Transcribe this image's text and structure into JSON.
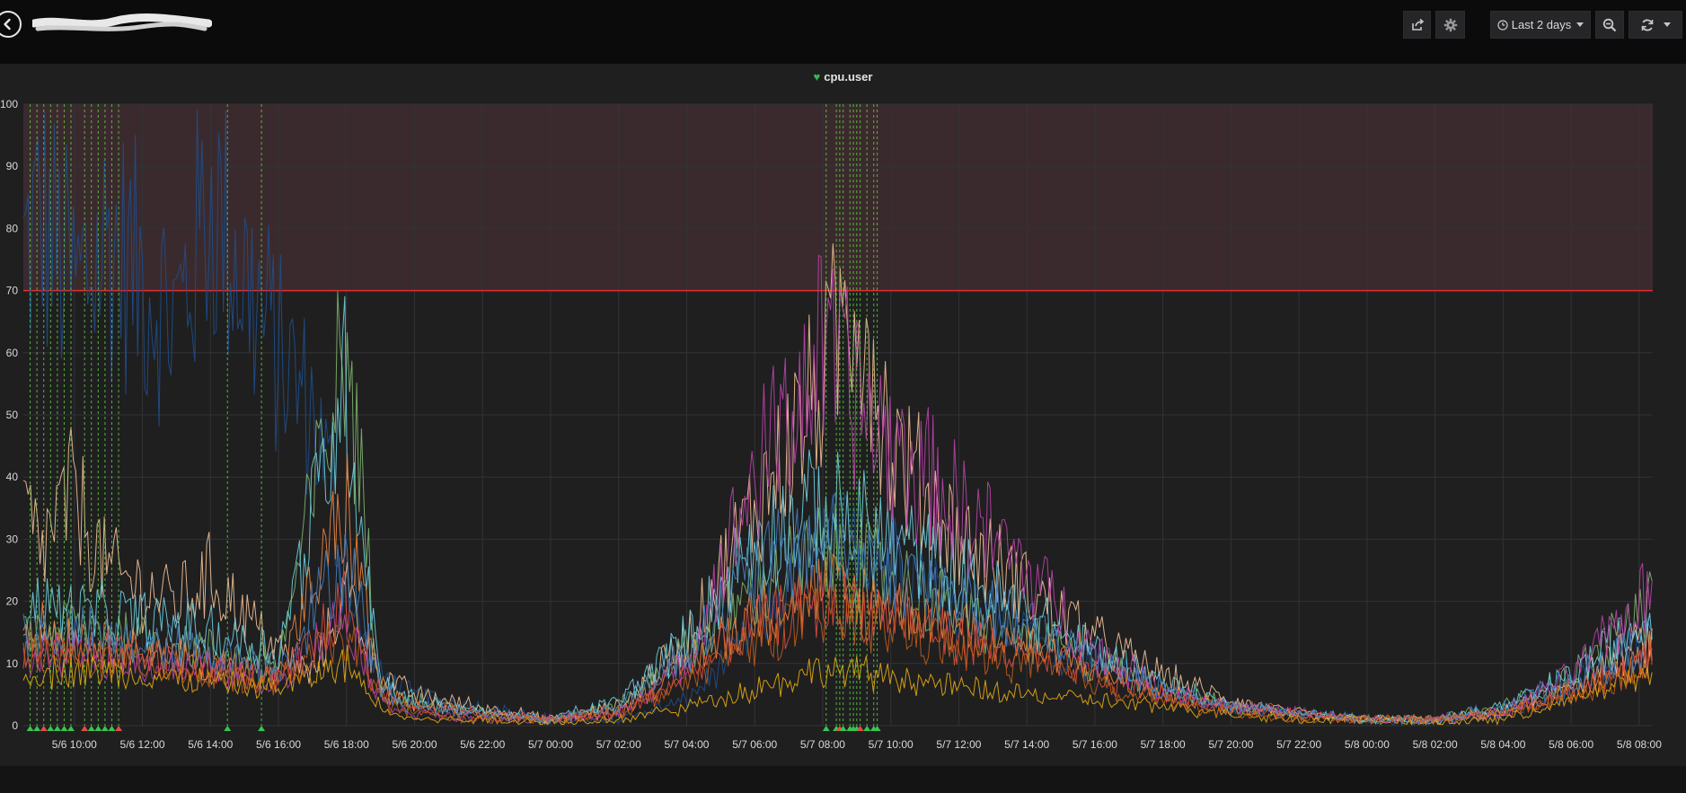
{
  "toolbar": {
    "time_range_label": "Last 2 days"
  },
  "panel": {
    "title": "cpu.user"
  },
  "chart_data": {
    "type": "line",
    "title": "cpu.user",
    "ylim": [
      0,
      100
    ],
    "y_ticks": [
      0,
      10,
      20,
      30,
      40,
      50,
      60,
      70,
      80,
      90,
      100
    ],
    "x_tick_labels": [
      "5/6 10:00",
      "5/6 12:00",
      "5/6 14:00",
      "5/6 16:00",
      "5/6 18:00",
      "5/6 20:00",
      "5/6 22:00",
      "5/7 00:00",
      "5/7 02:00",
      "5/7 04:00",
      "5/7 06:00",
      "5/7 08:00",
      "5/7 10:00",
      "5/7 12:00",
      "5/7 14:00",
      "5/7 16:00",
      "5/7 18:00",
      "5/7 20:00",
      "5/7 22:00",
      "5/8 00:00",
      "5/8 02:00",
      "5/8 04:00",
      "5/8 06:00",
      "5/8 08:00"
    ],
    "x_start_hours": -1.5,
    "x_end_hours": 46.4,
    "threshold": {
      "value": 70,
      "op": "gt",
      "line_color": "#e02f2f",
      "fill_color": "#3b2a2d"
    },
    "grid": true,
    "annotations_hours": [
      -1.3,
      -1.1,
      -0.9,
      -0.7,
      -0.5,
      -0.3,
      -0.1,
      0.3,
      0.5,
      0.7,
      0.9,
      1.1,
      1.3,
      4.5,
      5.5,
      22.1,
      22.4,
      22.5,
      22.6,
      22.8,
      22.9,
      23.0,
      23.1,
      23.3,
      23.5,
      23.6
    ],
    "series": [
      {
        "color": "#1f4e8c",
        "values": [
          [
            -1.5,
            75
          ],
          [
            -1,
            82
          ],
          [
            0,
            70
          ],
          [
            1,
            78
          ],
          [
            2,
            72
          ],
          [
            3,
            65
          ],
          [
            4,
            85
          ],
          [
            5,
            72
          ],
          [
            6,
            60
          ],
          [
            7,
            50
          ],
          [
            7.5,
            40
          ],
          [
            8,
            20
          ],
          [
            9,
            8
          ],
          [
            10,
            5
          ],
          [
            12,
            3
          ],
          [
            14,
            1
          ],
          [
            16,
            1
          ],
          [
            18,
            4
          ],
          [
            20,
            15
          ],
          [
            22,
            30
          ],
          [
            24,
            28
          ],
          [
            26,
            20
          ],
          [
            28,
            14
          ],
          [
            30,
            10
          ],
          [
            32,
            6
          ],
          [
            34,
            3
          ],
          [
            36,
            2
          ],
          [
            38,
            1
          ],
          [
            40,
            1
          ],
          [
            42,
            2
          ],
          [
            44,
            6
          ],
          [
            46.4,
            15
          ]
        ]
      },
      {
        "color": "#f2c196",
        "values": [
          [
            -1.5,
            35
          ],
          [
            -1,
            28
          ],
          [
            0,
            38
          ],
          [
            0.5,
            30
          ],
          [
            1,
            25
          ],
          [
            2,
            22
          ],
          [
            3,
            20
          ],
          [
            4,
            24
          ],
          [
            5,
            18
          ],
          [
            6,
            12
          ],
          [
            7,
            8
          ],
          [
            8,
            22
          ],
          [
            9,
            8
          ],
          [
            10,
            5
          ],
          [
            12,
            3
          ],
          [
            14,
            1
          ],
          [
            16,
            3
          ],
          [
            18,
            14
          ],
          [
            20,
            35
          ],
          [
            22,
            55
          ],
          [
            23,
            72
          ],
          [
            24,
            45
          ],
          [
            26,
            30
          ],
          [
            28,
            22
          ],
          [
            30,
            14
          ],
          [
            32,
            8
          ],
          [
            34,
            4
          ],
          [
            36,
            2
          ],
          [
            38,
            1
          ],
          [
            40,
            1
          ],
          [
            42,
            2
          ],
          [
            44,
            7
          ],
          [
            46.4,
            14
          ]
        ]
      },
      {
        "color": "#7eb26d",
        "values": [
          [
            -1.5,
            14
          ],
          [
            0,
            16
          ],
          [
            2,
            14
          ],
          [
            4,
            12
          ],
          [
            6,
            10
          ],
          [
            8,
            62
          ],
          [
            9,
            6
          ],
          [
            10,
            4
          ],
          [
            12,
            2
          ],
          [
            14,
            1
          ],
          [
            16,
            3
          ],
          [
            18,
            12
          ],
          [
            20,
            22
          ],
          [
            22,
            28
          ],
          [
            24,
            24
          ],
          [
            26,
            18
          ],
          [
            28,
            14
          ],
          [
            30,
            10
          ],
          [
            32,
            6
          ],
          [
            34,
            3
          ],
          [
            36,
            2
          ],
          [
            38,
            1
          ],
          [
            40,
            1
          ],
          [
            42,
            3
          ],
          [
            44,
            8
          ],
          [
            46.4,
            20
          ]
        ]
      },
      {
        "color": "#6ed0e0",
        "values": [
          [
            -1.5,
            20
          ],
          [
            0,
            18
          ],
          [
            2,
            17
          ],
          [
            4,
            15
          ],
          [
            6,
            12
          ],
          [
            8,
            55
          ],
          [
            9,
            7
          ],
          [
            10,
            4
          ],
          [
            12,
            2
          ],
          [
            14,
            1
          ],
          [
            16,
            4
          ],
          [
            18,
            14
          ],
          [
            20,
            30
          ],
          [
            22,
            35
          ],
          [
            24,
            30
          ],
          [
            26,
            24
          ],
          [
            28,
            18
          ],
          [
            30,
            12
          ],
          [
            32,
            7
          ],
          [
            34,
            3
          ],
          [
            36,
            2
          ],
          [
            38,
            1
          ],
          [
            40,
            1
          ],
          [
            42,
            3
          ],
          [
            44,
            8
          ],
          [
            46.4,
            18
          ]
        ]
      },
      {
        "color": "#ef843c",
        "values": [
          [
            -1.5,
            17
          ],
          [
            0,
            14
          ],
          [
            2,
            12
          ],
          [
            4,
            10
          ],
          [
            6,
            8
          ],
          [
            8,
            35
          ],
          [
            9,
            6
          ],
          [
            10,
            3
          ],
          [
            12,
            2
          ],
          [
            14,
            1
          ],
          [
            16,
            2
          ],
          [
            18,
            10
          ],
          [
            20,
            18
          ],
          [
            22,
            22
          ],
          [
            24,
            20
          ],
          [
            26,
            16
          ],
          [
            28,
            13
          ],
          [
            30,
            9
          ],
          [
            32,
            5
          ],
          [
            34,
            3
          ],
          [
            36,
            2
          ],
          [
            38,
            1
          ],
          [
            40,
            1
          ],
          [
            42,
            2
          ],
          [
            44,
            6
          ],
          [
            46.4,
            12
          ]
        ]
      },
      {
        "color": "#e24d42",
        "values": [
          [
            -1.5,
            12
          ],
          [
            0,
            13
          ],
          [
            2,
            11
          ],
          [
            4,
            9
          ],
          [
            6,
            7
          ],
          [
            8,
            20
          ],
          [
            9,
            5
          ],
          [
            10,
            3
          ],
          [
            12,
            2
          ],
          [
            14,
            1
          ],
          [
            16,
            2
          ],
          [
            18,
            8
          ],
          [
            20,
            16
          ],
          [
            22,
            20
          ],
          [
            24,
            18
          ],
          [
            26,
            14
          ],
          [
            28,
            11
          ],
          [
            30,
            8
          ],
          [
            32,
            5
          ],
          [
            34,
            3
          ],
          [
            36,
            2
          ],
          [
            38,
            1
          ],
          [
            40,
            1
          ],
          [
            42,
            2
          ],
          [
            44,
            5
          ],
          [
            46.4,
            11
          ]
        ]
      },
      {
        "color": "#ba43a9",
        "values": [
          [
            -1.5,
            10
          ],
          [
            0,
            12
          ],
          [
            2,
            10
          ],
          [
            4,
            9
          ],
          [
            6,
            7
          ],
          [
            8,
            18
          ],
          [
            9,
            4
          ],
          [
            10,
            2
          ],
          [
            12,
            1
          ],
          [
            14,
            1
          ],
          [
            16,
            2
          ],
          [
            18,
            10
          ],
          [
            20,
            40
          ],
          [
            22,
            60
          ],
          [
            24,
            45
          ],
          [
            26,
            35
          ],
          [
            28,
            25
          ],
          [
            30,
            12
          ],
          [
            32,
            6
          ],
          [
            34,
            3
          ],
          [
            36,
            2
          ],
          [
            38,
            1
          ],
          [
            40,
            1
          ],
          [
            42,
            2
          ],
          [
            44,
            8
          ],
          [
            46.4,
            22
          ]
        ]
      },
      {
        "color": "#e5ac0e",
        "values": [
          [
            -1.5,
            8
          ],
          [
            0,
            9
          ],
          [
            2,
            8
          ],
          [
            4,
            7
          ],
          [
            6,
            6
          ],
          [
            8,
            10
          ],
          [
            9,
            3
          ],
          [
            10,
            1
          ],
          [
            12,
            1
          ],
          [
            14,
            0.5
          ],
          [
            16,
            1
          ],
          [
            18,
            3
          ],
          [
            20,
            6
          ],
          [
            22,
            9
          ],
          [
            24,
            8
          ],
          [
            26,
            6
          ],
          [
            28,
            5
          ],
          [
            30,
            4
          ],
          [
            32,
            3
          ],
          [
            34,
            2
          ],
          [
            36,
            1
          ],
          [
            38,
            1
          ],
          [
            40,
            0.5
          ],
          [
            42,
            1
          ],
          [
            44,
            4
          ],
          [
            46.4,
            9
          ]
        ]
      },
      {
        "color": "#447ebc",
        "values": [
          [
            -1.5,
            15
          ],
          [
            0,
            15
          ],
          [
            2,
            13
          ],
          [
            4,
            12
          ],
          [
            6,
            9
          ],
          [
            8,
            28
          ],
          [
            9,
            6
          ],
          [
            10,
            3
          ],
          [
            12,
            2
          ],
          [
            14,
            1
          ],
          [
            16,
            3
          ],
          [
            18,
            12
          ],
          [
            20,
            25
          ],
          [
            22,
            30
          ],
          [
            24,
            26
          ],
          [
            26,
            20
          ],
          [
            28,
            16
          ],
          [
            30,
            11
          ],
          [
            32,
            6
          ],
          [
            34,
            3
          ],
          [
            36,
            2
          ],
          [
            38,
            1
          ],
          [
            40,
            1
          ],
          [
            42,
            3
          ],
          [
            44,
            7
          ],
          [
            46.4,
            14
          ]
        ]
      },
      {
        "color": "#c15c17",
        "values": [
          [
            -1.5,
            11
          ],
          [
            0,
            11
          ],
          [
            2,
            10
          ],
          [
            4,
            8
          ],
          [
            6,
            7
          ],
          [
            8,
            15
          ],
          [
            9,
            4
          ],
          [
            10,
            2
          ],
          [
            12,
            1
          ],
          [
            14,
            1
          ],
          [
            16,
            2
          ],
          [
            18,
            7
          ],
          [
            20,
            14
          ],
          [
            22,
            18
          ],
          [
            24,
            16
          ],
          [
            26,
            12
          ],
          [
            28,
            10
          ],
          [
            30,
            7
          ],
          [
            32,
            4
          ],
          [
            34,
            2
          ],
          [
            36,
            1
          ],
          [
            38,
            1
          ],
          [
            40,
            1
          ],
          [
            42,
            2
          ],
          [
            44,
            5
          ],
          [
            46.4,
            10
          ]
        ]
      }
    ]
  }
}
